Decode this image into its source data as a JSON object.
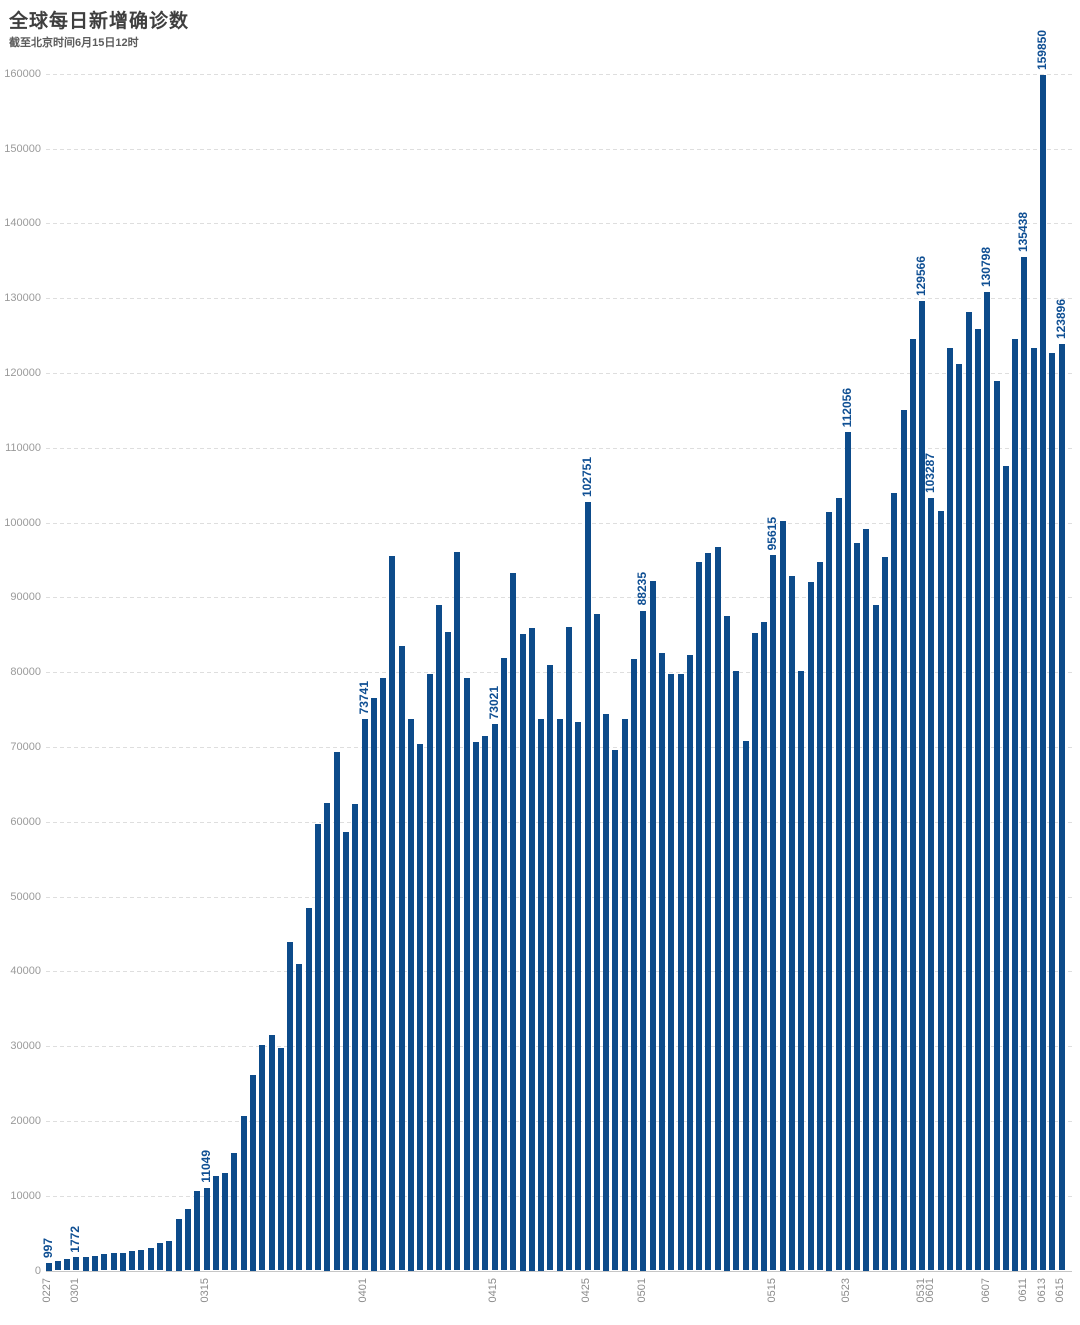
{
  "header": {
    "title": "全球每日新增确诊数",
    "subtitle": "截至北京时间6月15日12时"
  },
  "chart_data": {
    "type": "bar",
    "title": "全球每日新增确诊数",
    "subtitle": "截至北京时间6月15日12时",
    "xlabel": "",
    "ylabel": "",
    "ylim": [
      0,
      160000
    ],
    "y_ticks": [
      0,
      10000,
      20000,
      30000,
      40000,
      50000,
      60000,
      70000,
      80000,
      90000,
      100000,
      110000,
      120000,
      130000,
      140000,
      150000,
      160000
    ],
    "grid": true,
    "legend": false,
    "bar_color": "#0d4b8a",
    "annotation_color": "#0f4f93",
    "axis_text_color": "#9a9a9a",
    "categories": [
      "0227",
      "0228",
      "0229",
      "0301",
      "0302",
      "0303",
      "0304",
      "0305",
      "0306",
      "0307",
      "0308",
      "0309",
      "0310",
      "0311",
      "0312",
      "0313",
      "0314",
      "0315",
      "0316",
      "0317",
      "0318",
      "0319",
      "0320",
      "0321",
      "0322",
      "0323",
      "0324",
      "0325",
      "0326",
      "0327",
      "0328",
      "0329",
      "0330",
      "0331",
      "0401",
      "0402",
      "0403",
      "0404",
      "0405",
      "0406",
      "0407",
      "0408",
      "0409",
      "0410",
      "0411",
      "0412",
      "0413",
      "0414",
      "0415",
      "0416",
      "0417",
      "0418",
      "0419",
      "0420",
      "0421",
      "0422",
      "0423",
      "0424",
      "0425",
      "0426",
      "0427",
      "0428",
      "0429",
      "0430",
      "0501",
      "0502",
      "0503",
      "0504",
      "0505",
      "0506",
      "0507",
      "0508",
      "0509",
      "0510",
      "0511",
      "0512",
      "0513",
      "0514",
      "0515",
      "0516",
      "0517",
      "0518",
      "0519",
      "0520",
      "0521",
      "0522",
      "0523",
      "0524",
      "0525",
      "0526",
      "0527",
      "0528",
      "0529",
      "0530",
      "0531",
      "0601",
      "0602",
      "0603",
      "0604",
      "0605",
      "0606",
      "0607",
      "0608",
      "0609",
      "0610",
      "0611",
      "0612",
      "0613",
      "0614",
      "0615"
    ],
    "values": [
      997,
      1300,
      1500,
      1772,
      1800,
      2000,
      2150,
      2300,
      2400,
      2650,
      2800,
      3050,
      3720,
      3940,
      6880,
      8250,
      10700,
      11049,
      12600,
      13000,
      15700,
      20600,
      26200,
      30200,
      31450,
      29700,
      43900,
      41000,
      48500,
      59700,
      62500,
      69300,
      58600,
      62400,
      73741,
      76600,
      79200,
      95500,
      83500,
      73800,
      70400,
      79700,
      89000,
      85400,
      96100,
      79200,
      70700,
      71500,
      73021,
      81900,
      93300,
      85100,
      85900,
      73800,
      81000,
      73800,
      86000,
      73300,
      102751,
      87800,
      74400,
      69600,
      73800,
      81700,
      88235,
      92200,
      82500,
      79700,
      79700,
      82300,
      94700,
      95900,
      96700,
      87500,
      80100,
      70800,
      85200,
      86700,
      95615,
      100200,
      92900,
      80100,
      92000,
      94700,
      101400,
      103300,
      112056,
      97200,
      99200,
      89000,
      95400,
      103900,
      115000,
      124500,
      129566,
      103287,
      101500,
      123300,
      121200,
      128200,
      125900,
      130798,
      118900,
      107500,
      124600,
      135438,
      123300,
      159850,
      122700,
      123896
    ],
    "x_tick_labels": [
      "0227",
      "0301",
      "0315",
      "0401",
      "0415",
      "0425",
      "0501",
      "0515",
      "0523",
      "0531",
      "0601",
      "0607",
      "0611",
      "0613",
      "0615"
    ],
    "annotated_dates": [
      "0227",
      "0301",
      "0315",
      "0401",
      "0415",
      "0425",
      "0501",
      "0515",
      "0523",
      "0531",
      "0601",
      "0607",
      "0611",
      "0613",
      "0615"
    ]
  }
}
